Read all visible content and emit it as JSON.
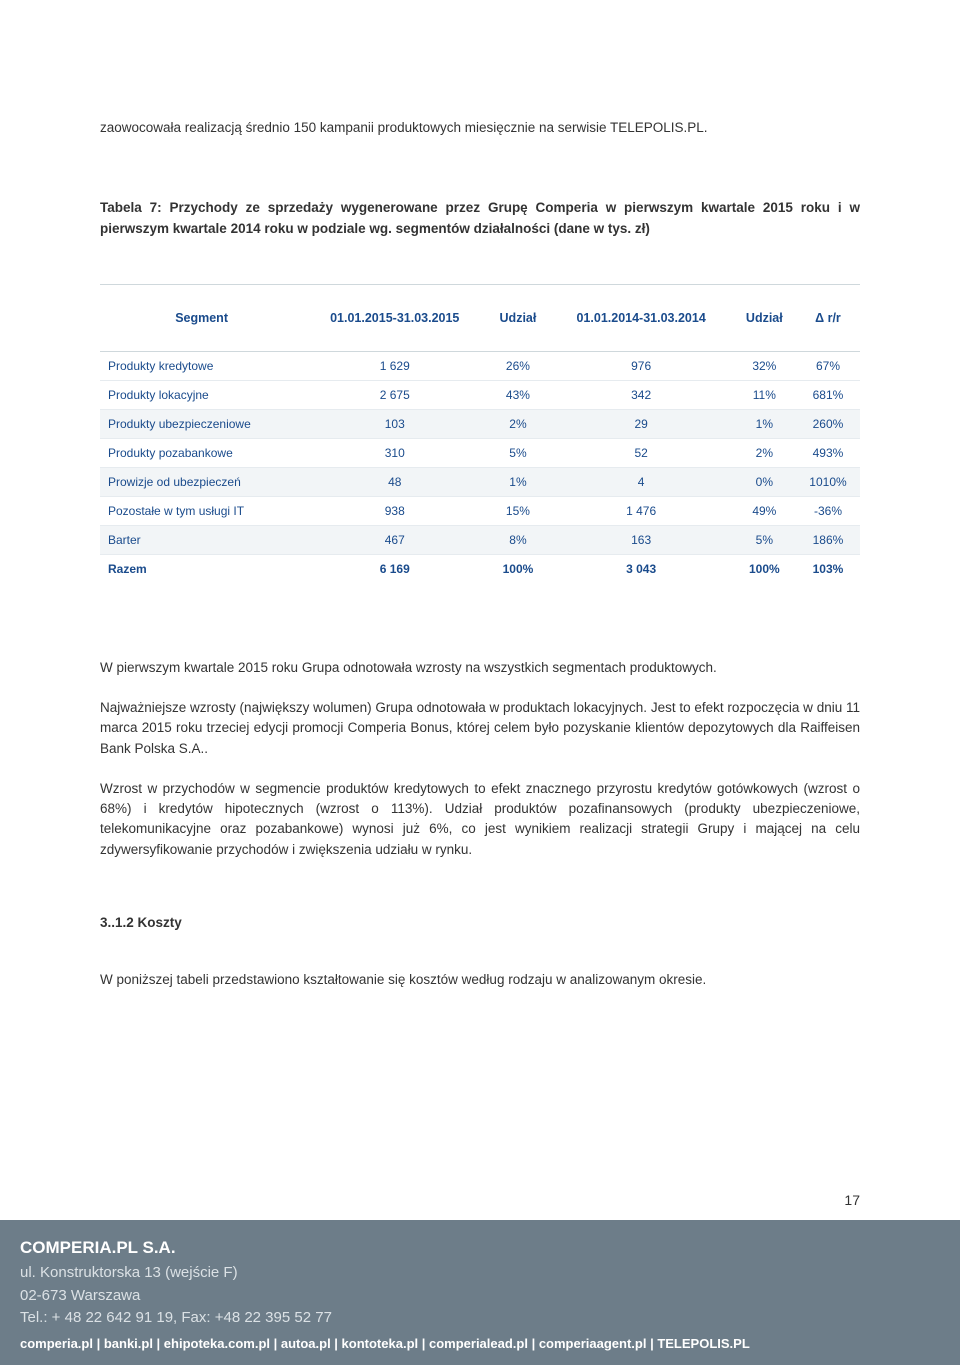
{
  "intro": "zaowocowała realizacją średnio 150 kampanii produktowych miesięcznie na serwisie TELEPOLIS.PL.",
  "tableCaption": "Tabela 7: Przychody ze sprzedaży wygenerowane przez Grupę Comperia w pierwszym kwartale 2015 roku i w pierwszym kwartale 2014 roku w podziale wg. segmentów działalności (dane w tys. zł)",
  "table": {
    "headers": {
      "c1": "Segment",
      "c2": "01.01.2015-31.03.2015",
      "c3": "Udział",
      "c4": "01.01.2014-31.03.2014",
      "c5": "Udział",
      "c6": "Δ r/r"
    },
    "rows": [
      {
        "c1": "Produkty kredytowe",
        "c2": "1 629",
        "c3": "26%",
        "c4": "976",
        "c5": "32%",
        "c6": "67%"
      },
      {
        "c1": "Produkty lokacyjne",
        "c2": "2 675",
        "c3": "43%",
        "c4": "342",
        "c5": "11%",
        "c6": "681%"
      },
      {
        "c1": "Produkty ubezpieczeniowe",
        "c2": "103",
        "c3": "2%",
        "c4": "29",
        "c5": "1%",
        "c6": "260%"
      },
      {
        "c1": "Produkty pozabankowe",
        "c2": "310",
        "c3": "5%",
        "c4": "52",
        "c5": "2%",
        "c6": "493%"
      },
      {
        "c1": "Prowizje od ubezpieczeń",
        "c2": "48",
        "c3": "1%",
        "c4": "4",
        "c5": "0%",
        "c6": "1010%"
      },
      {
        "c1": "Pozostałe w tym usługi IT",
        "c2": "938",
        "c3": "15%",
        "c4": "1 476",
        "c5": "49%",
        "c6": "-36%"
      },
      {
        "c1": "Barter",
        "c2": "467",
        "c3": "8%",
        "c4": "163",
        "c5": "5%",
        "c6": "186%"
      }
    ],
    "total": {
      "c1": "Razem",
      "c2": "6 169",
      "c3": "100%",
      "c4": "3 043",
      "c5": "100%",
      "c6": "103%"
    },
    "altRows": [
      2,
      4,
      6
    ],
    "colors": {
      "header_text": "#1a4b8c",
      "cell_text": "#1a4b8c",
      "border": "#cfd8dc",
      "row_border": "#e6ebef",
      "alt_bg": "#f2f5f7"
    }
  },
  "para1": "W pierwszym kwartale 2015 roku Grupa odnotowała wzrosty na wszystkich segmentach produktowych.",
  "para2": "Najważniejsze wzrosty (największy wolumen) Grupa odnotowała w produktach lokacyjnych. Jest to efekt rozpoczęcia w dniu 11 marca 2015 roku trzeciej edycji promocji Comperia Bonus, której celem było pozyskanie klientów depozytowych dla Raiffeisen Bank Polska S.A..",
  "para3": "Wzrost w przychodów w segmencie produktów kredytowych to efekt znacznego przyrostu kredytów gotówkowych (wzrost o 68%) i kredytów hipotecznych (wzrost o 113%). Udział produktów pozafinansowych (produkty ubezpieczeniowe, telekomunikacyjne oraz pozabankowe) wynosi już 6%, co jest wynikiem realizacji strategii Grupy i mającej na celu zdywersyfikowanie przychodów i zwiększenia udziału w rynku.",
  "subHeading": "3..1.2 Koszty",
  "para4": "W poniższej tabeli przedstawiono kształtowanie się kosztów według rodzaju w analizowanym okresie.",
  "pageNumber": "17",
  "footer": {
    "company": "COMPERIA.PL S.A.",
    "addr1": "ul. Konstruktorska 13 (wejście F)",
    "addr2": "02-673 Warszawa",
    "tel": "Tel.: + 48 22 642 91 19,  Fax: +48 22 395 52 77",
    "sites": "comperia.pl | banki.pl | ehipoteka.com.pl | autoa.pl | kontoteka.pl | comperialead.pl | comperiaagent.pl | TELEPOLIS.PL",
    "bg": "#6d7d89"
  }
}
